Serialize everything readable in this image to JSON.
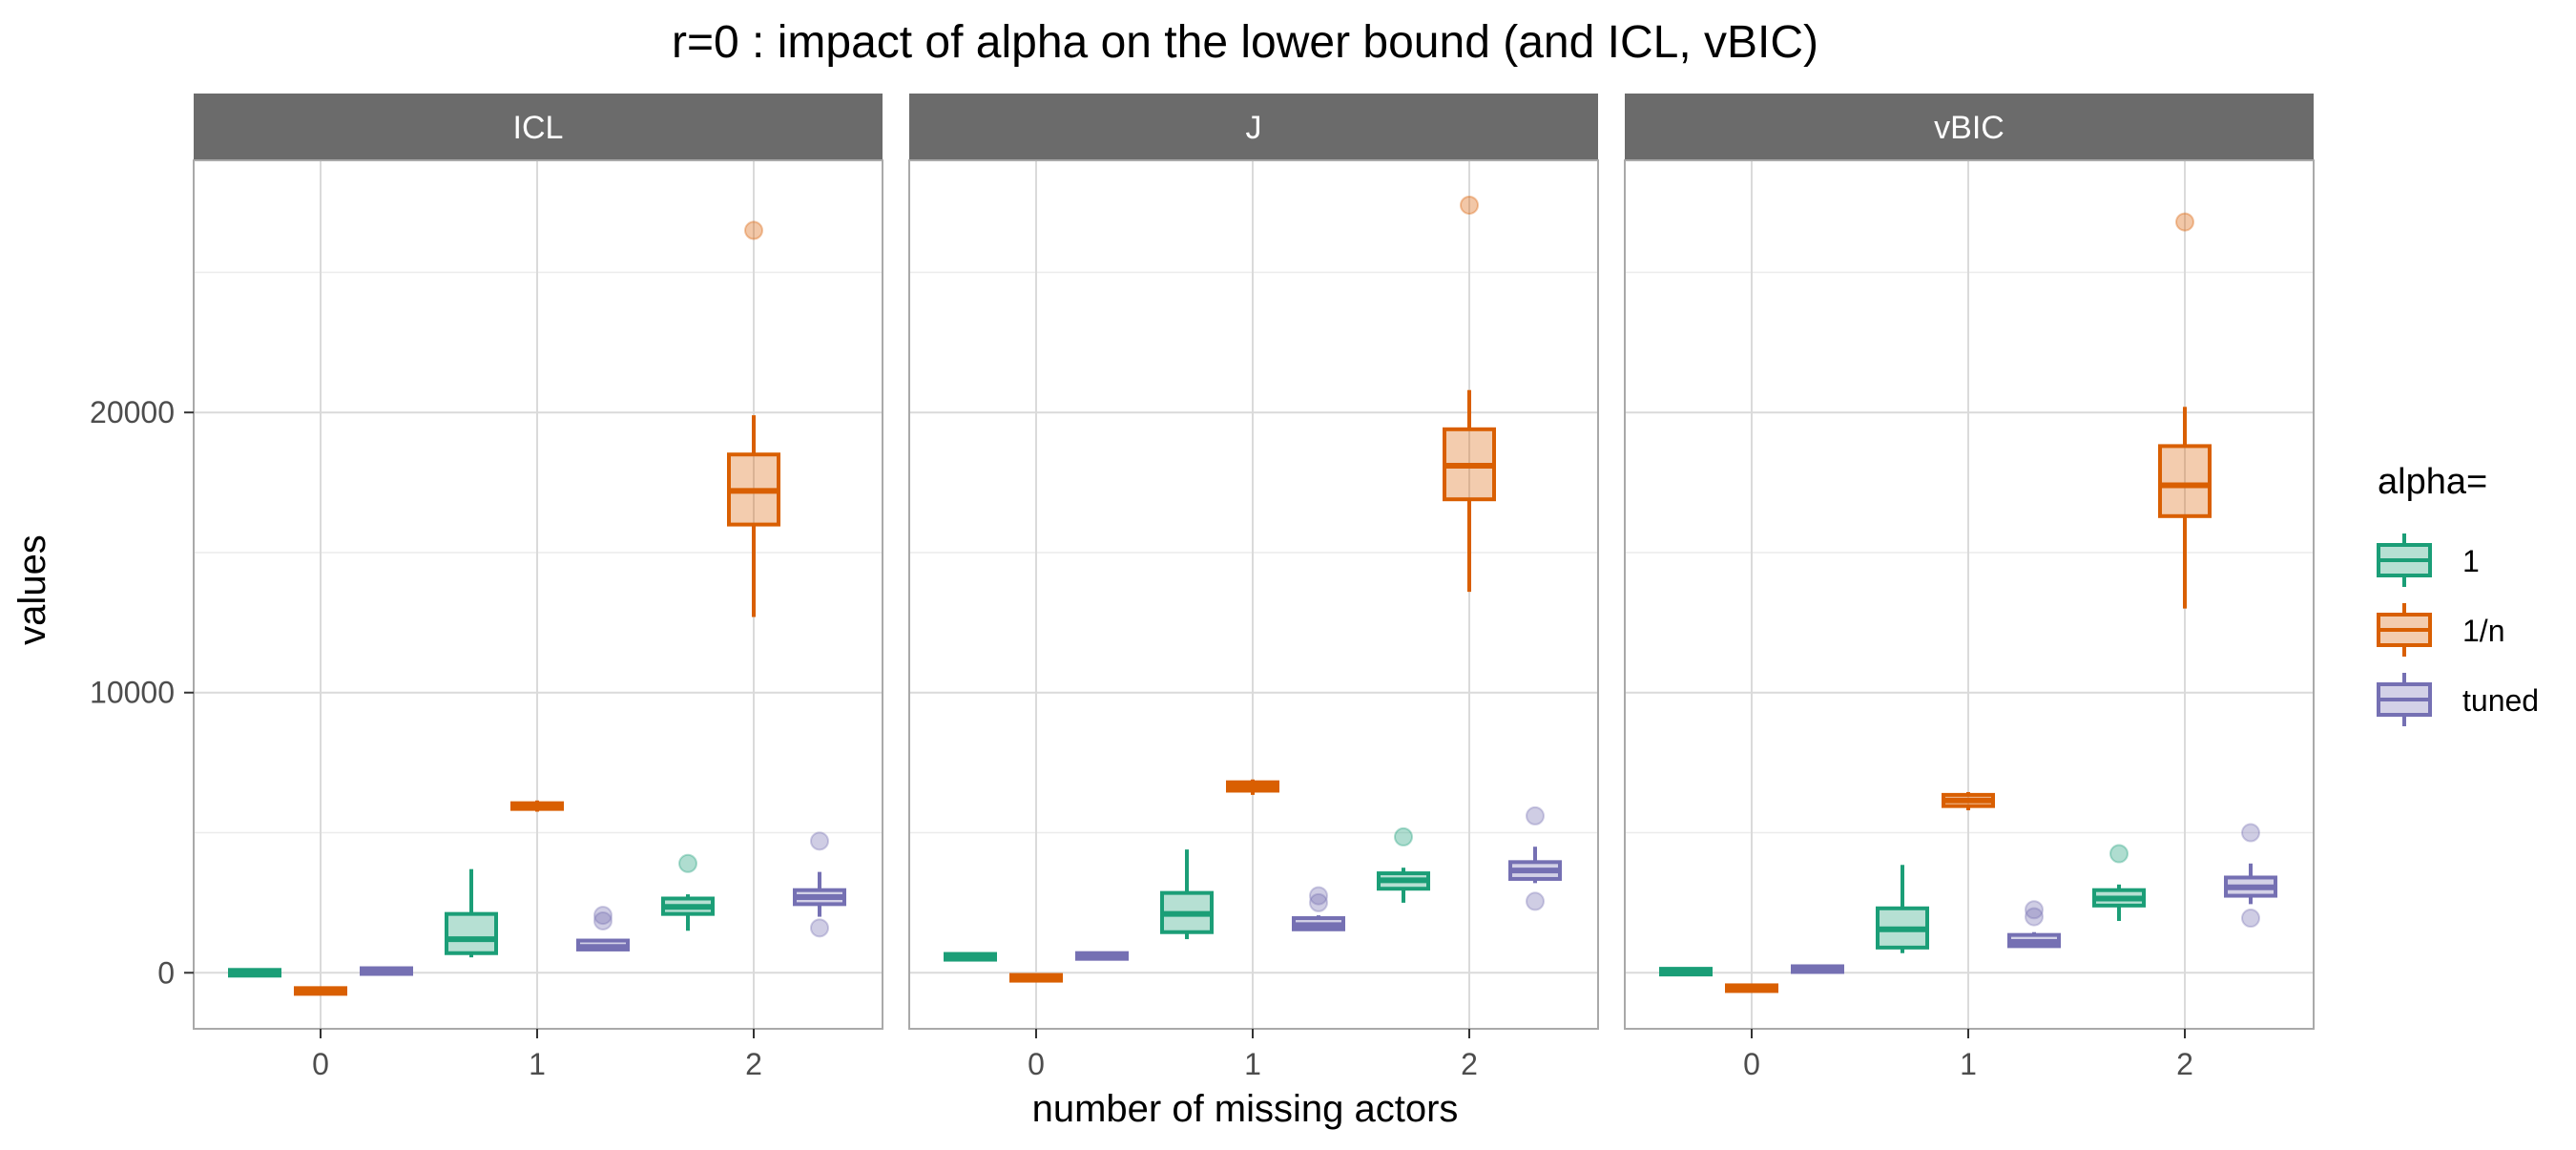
{
  "chart_data": {
    "type": "boxplot",
    "title": "r=0 : impact of alpha on the lower bound (and ICL, vBIC)",
    "xlabel": "number of missing actors",
    "ylabel": "values",
    "categories": [
      "0",
      "1",
      "2"
    ],
    "y_ticks": [
      0,
      10000,
      20000
    ],
    "y_tick_labels": [
      "0",
      "10000",
      "20000"
    ],
    "ylim": [
      -2000,
      29000
    ],
    "grid": true,
    "legend": {
      "title": "alpha=",
      "position": "right",
      "entries": [
        "1",
        "1/n",
        "tuned"
      ]
    },
    "series_colors": {
      "1": "#1b9e77",
      "1/n": "#d95f02",
      "tuned": "#7570b3"
    },
    "panels": [
      {
        "label": "ICL",
        "series": [
          {
            "name": "1",
            "boxes": [
              {
                "x": "0",
                "whislo": -30,
                "q1": -10,
                "med": 0,
                "q3": 10,
                "whishi": 30,
                "outliers": []
              },
              {
                "x": "1",
                "whislo": 550,
                "q1": 700,
                "med": 1200,
                "q3": 2100,
                "whishi": 3700,
                "outliers": []
              },
              {
                "x": "2",
                "whislo": 1500,
                "q1": 2100,
                "med": 2350,
                "q3": 2650,
                "whishi": 2800,
                "outliers": [
                  3900
                ]
              }
            ]
          },
          {
            "name": "1/n",
            "boxes": [
              {
                "x": "0",
                "whislo": -700,
                "q1": -680,
                "med": -650,
                "q3": -620,
                "whishi": -600,
                "outliers": []
              },
              {
                "x": "1",
                "whislo": 5750,
                "q1": 5850,
                "med": 5950,
                "q3": 6050,
                "whishi": 6150,
                "outliers": []
              },
              {
                "x": "2",
                "whislo": 12700,
                "q1": 16000,
                "med": 17200,
                "q3": 18500,
                "whishi": 19900,
                "outliers": [
                  26500
                ]
              }
            ]
          },
          {
            "name": "tuned",
            "boxes": [
              {
                "x": "0",
                "whislo": 10,
                "q1": 30,
                "med": 60,
                "q3": 90,
                "whishi": 110,
                "outliers": []
              },
              {
                "x": "1",
                "whislo": 780,
                "q1": 830,
                "med": 920,
                "q3": 1150,
                "whishi": 1200,
                "outliers": [
                  1850,
                  2050
                ]
              },
              {
                "x": "2",
                "whislo": 2000,
                "q1": 2450,
                "med": 2700,
                "q3": 2950,
                "whishi": 3600,
                "outliers": [
                  1600,
                  4700
                ]
              }
            ]
          }
        ]
      },
      {
        "label": "J",
        "series": [
          {
            "name": "1",
            "boxes": [
              {
                "x": "0",
                "whislo": 500,
                "q1": 530,
                "med": 570,
                "q3": 610,
                "whishi": 640,
                "outliers": []
              },
              {
                "x": "1",
                "whislo": 1200,
                "q1": 1450,
                "med": 2100,
                "q3": 2850,
                "whishi": 4400,
                "outliers": []
              },
              {
                "x": "2",
                "whislo": 2500,
                "q1": 3000,
                "med": 3300,
                "q3": 3550,
                "whishi": 3750,
                "outliers": [
                  4850
                ]
              }
            ]
          },
          {
            "name": "1/n",
            "boxes": [
              {
                "x": "0",
                "whislo": -270,
                "q1": -230,
                "med": -180,
                "q3": -130,
                "whishi": -90,
                "outliers": []
              },
              {
                "x": "1",
                "whislo": 6350,
                "q1": 6500,
                "med": 6650,
                "q3": 6800,
                "whishi": 6900,
                "outliers": []
              },
              {
                "x": "2",
                "whislo": 13600,
                "q1": 16900,
                "med": 18100,
                "q3": 19400,
                "whishi": 20800,
                "outliers": [
                  27400
                ]
              }
            ]
          },
          {
            "name": "tuned",
            "boxes": [
              {
                "x": "0",
                "whislo": 530,
                "q1": 560,
                "med": 600,
                "q3": 640,
                "whishi": 670,
                "outliers": []
              },
              {
                "x": "1",
                "whislo": 1500,
                "q1": 1550,
                "med": 1700,
                "q3": 1950,
                "whishi": 2050,
                "outliers": [
                  2500,
                  2750
                ]
              },
              {
                "x": "2",
                "whislo": 3200,
                "q1": 3350,
                "med": 3650,
                "q3": 3950,
                "whishi": 4500,
                "outliers": [
                  2550,
                  5600
                ]
              }
            ]
          }
        ]
      },
      {
        "label": "vBIC",
        "series": [
          {
            "name": "1",
            "boxes": [
              {
                "x": "0",
                "whislo": -20,
                "q1": 0,
                "med": 40,
                "q3": 80,
                "whishi": 100,
                "outliers": []
              },
              {
                "x": "1",
                "whislo": 700,
                "q1": 900,
                "med": 1550,
                "q3": 2300,
                "whishi": 3850,
                "outliers": []
              },
              {
                "x": "2",
                "whislo": 1850,
                "q1": 2400,
                "med": 2650,
                "q3": 2950,
                "whishi": 3150,
                "outliers": [
                  4250
                ]
              }
            ]
          },
          {
            "name": "1/n",
            "boxes": [
              {
                "x": "0",
                "whislo": -620,
                "q1": -590,
                "med": -550,
                "q3": -510,
                "whishi": -480,
                "outliers": []
              },
              {
                "x": "1",
                "whislo": 5800,
                "q1": 5950,
                "med": 6150,
                "q3": 6350,
                "whishi": 6450,
                "outliers": []
              },
              {
                "x": "2",
                "whislo": 13000,
                "q1": 16300,
                "med": 17400,
                "q3": 18800,
                "whishi": 20200,
                "outliers": [
                  26800
                ]
              }
            ]
          },
          {
            "name": "tuned",
            "boxes": [
              {
                "x": "0",
                "whislo": 60,
                "q1": 90,
                "med": 130,
                "q3": 170,
                "whishi": 200,
                "outliers": []
              },
              {
                "x": "1",
                "whislo": 900,
                "q1": 950,
                "med": 1100,
                "q3": 1350,
                "whishi": 1450,
                "outliers": [
                  2000,
                  2250
                ]
              },
              {
                "x": "2",
                "whislo": 2450,
                "q1": 2750,
                "med": 3050,
                "q3": 3400,
                "whishi": 3900,
                "outliers": [
                  1950,
                  5000
                ]
              }
            ]
          }
        ]
      }
    ]
  }
}
